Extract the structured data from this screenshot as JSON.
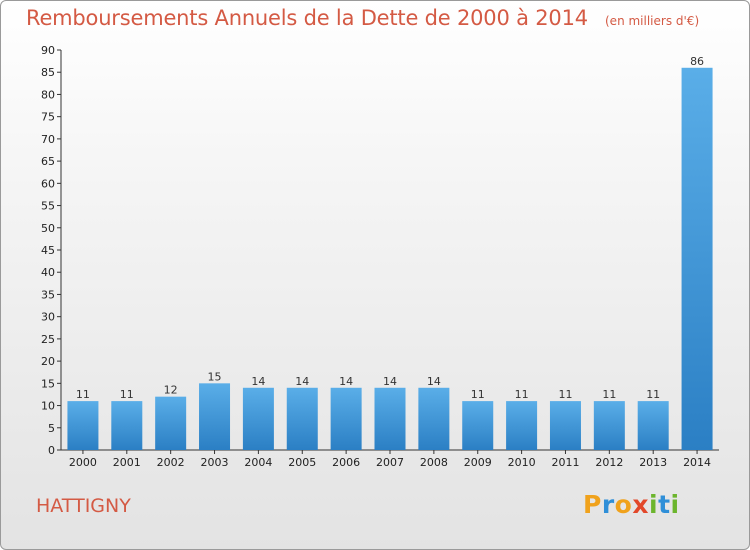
{
  "header": {
    "title": "Remboursements Annuels de la Dette de 2000 à 2014",
    "unit": "(en milliers d'€)"
  },
  "commune": "HATTIGNY",
  "logo": {
    "text": "Proxiti"
  },
  "colors": {
    "bar_light": "#5aaee8",
    "bar_dark": "#2b7fc4",
    "title": "#d45a44"
  },
  "chart_data": {
    "type": "bar",
    "title": "Remboursements Annuels de la Dette de 2000 à 2014",
    "xlabel": "",
    "ylabel": "",
    "categories": [
      "2000",
      "2001",
      "2002",
      "2003",
      "2004",
      "2005",
      "2006",
      "2007",
      "2008",
      "2009",
      "2010",
      "2011",
      "2012",
      "2013",
      "2014"
    ],
    "values": [
      11,
      11,
      12,
      15,
      14,
      14,
      14,
      14,
      14,
      11,
      11,
      11,
      11,
      11,
      86
    ],
    "ylim": [
      0,
      90
    ],
    "yticks": [
      0,
      5,
      10,
      15,
      20,
      25,
      30,
      35,
      40,
      45,
      50,
      55,
      60,
      65,
      70,
      75,
      80,
      85,
      90
    ],
    "grid": false,
    "data_labels": true
  }
}
